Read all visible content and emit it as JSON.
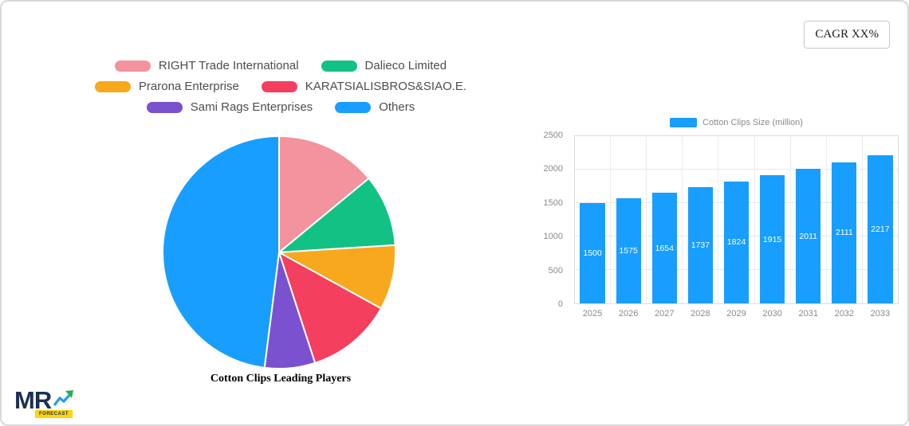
{
  "cagr_badge": {
    "label": "CAGR XX%"
  },
  "chart_data": [
    {
      "type": "pie",
      "title": "Cotton Clips Leading Players",
      "labels": [
        "RIGHT Trade International",
        "Dalieco Limited",
        "Prarona Enterprise",
        "KARATSIALISBROS&SIAO.E.",
        "Sami Rags Enterprises",
        "Others"
      ],
      "values": [
        14,
        10,
        9,
        12,
        7,
        48
      ],
      "colors": [
        "#F2939E",
        "#12C284",
        "#F8A81D",
        "#F43F5E",
        "#7A52CF",
        "#189EFF"
      ],
      "legend_position": "top",
      "legend_rows": [
        [
          0,
          1
        ],
        [
          2,
          3
        ],
        [
          4,
          5
        ]
      ]
    },
    {
      "type": "bar",
      "legend_label": "Cotton Clips Size (million)",
      "categories": [
        "2025",
        "2026",
        "2027",
        "2028",
        "2029",
        "2030",
        "2031",
        "2032",
        "2033"
      ],
      "values": [
        1500,
        1575,
        1654,
        1737,
        1824,
        1915,
        2011,
        2111,
        2217
      ],
      "ylim": [
        0,
        2500
      ],
      "yticks": [
        0,
        500,
        1000,
        1500,
        2000,
        2500
      ],
      "bar_color": "#189EFF",
      "grid": true
    }
  ],
  "logo": {
    "text": "MR",
    "badge": "FORECAST"
  }
}
